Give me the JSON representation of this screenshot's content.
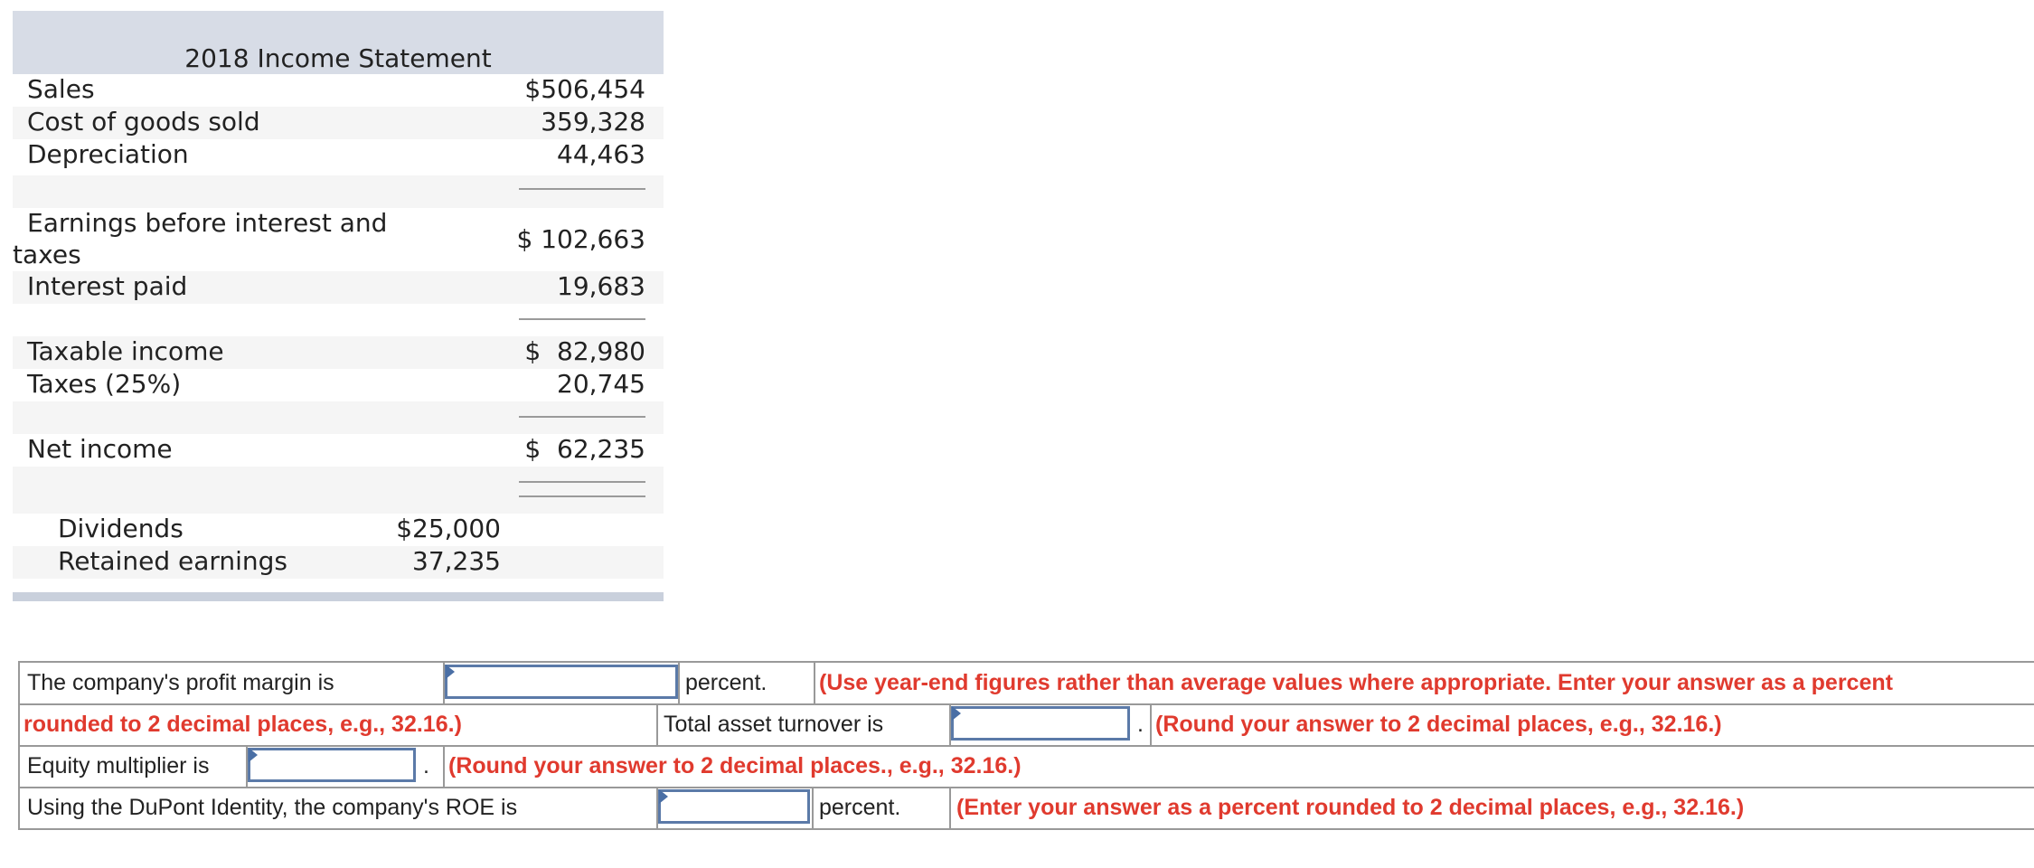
{
  "statement": {
    "title": "2018 Income Statement",
    "rows": {
      "sales": {
        "label": "Sales",
        "value": "$506,454"
      },
      "cogs": {
        "label": "Cost of goods sold",
        "value": "359,328"
      },
      "depreciation": {
        "label": "Depreciation",
        "value": "44,463"
      },
      "ebit": {
        "label_line1": "Earnings before interest and",
        "label_line2": "taxes",
        "value": "$ 102,663"
      },
      "interest": {
        "label": "Interest paid",
        "value": "19,683"
      },
      "taxable": {
        "label": "Taxable income",
        "value": "$  82,980"
      },
      "taxes": {
        "label": "Taxes (25%)",
        "value": "20,745"
      },
      "net_income": {
        "label": "Net income",
        "value": "$  62,235"
      },
      "dividends": {
        "label": "Dividends",
        "value": "$25,000"
      },
      "retained": {
        "label": "Retained earnings",
        "value": "37,235"
      }
    }
  },
  "questions": {
    "profit_margin": {
      "prompt": "The company's profit margin is",
      "unit": "percent.",
      "hint_line1": "(Use year-end figures rather than average values where appropriate. Enter your answer as a percent",
      "hint_line2": "rounded to 2 decimal places, e.g., 32.16.)",
      "value": ""
    },
    "asset_turnover": {
      "prompt": "Total asset turnover is",
      "unit": ".",
      "hint": "(Round your answer to 2 decimal places, e.g., 32.16.)",
      "value": ""
    },
    "equity_multiplier": {
      "prompt": "Equity multiplier is",
      "unit": ".",
      "hint": "(Round your answer to 2 decimal places., e.g., 32.16.)",
      "value": ""
    },
    "roe": {
      "prompt": "Using the DuPont Identity, the company's ROE is",
      "unit": "percent.",
      "hint": "(Enter your answer as a percent rounded to 2 decimal places, e.g., 32.16.)",
      "value": ""
    }
  },
  "colors": {
    "header_band": "#d7dce6",
    "stripe": "#f5f5f5",
    "hint_red": "#e03a2e",
    "input_border": "#5b7aa8"
  }
}
